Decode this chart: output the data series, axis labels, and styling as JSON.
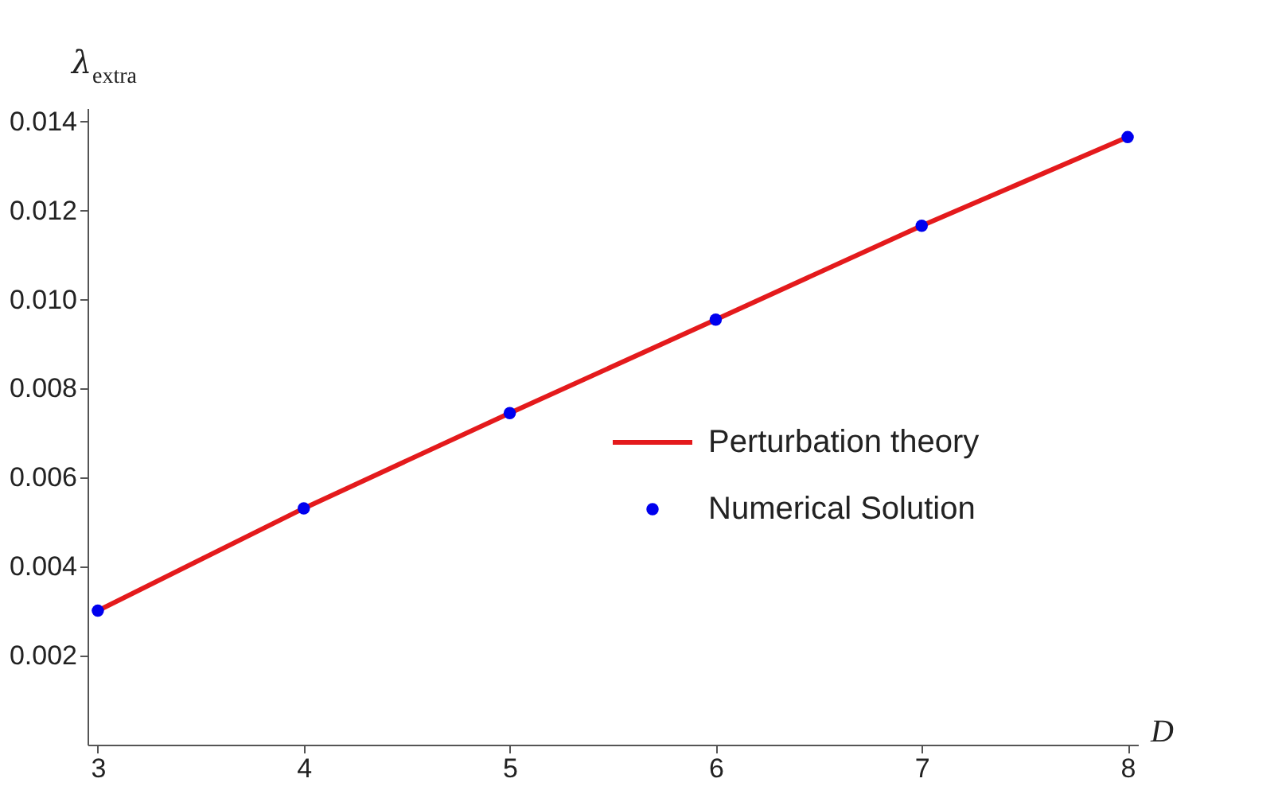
{
  "chart_data": {
    "type": "line",
    "ylabel": "λ$_{extra}$",
    "xlabel": "D",
    "x": [
      3,
      4,
      5,
      6,
      7,
      8
    ],
    "series": [
      {
        "name": "Perturbation theory",
        "color": "#e41a1c",
        "line_style": "solid",
        "marker": "none",
        "values": [
          0.00301,
          0.00531,
          0.00745,
          0.00955,
          0.01166,
          0.01365
        ]
      },
      {
        "name": "Numerical Solution",
        "type": "scatter",
        "color": "#0000ee",
        "marker": "circle",
        "values": [
          0.00301,
          0.00531,
          0.00745,
          0.00955,
          0.01166,
          0.01365
        ]
      }
    ],
    "xlim": [
      2.95,
      8.05
    ],
    "ylim": [
      0,
      0.0143
    ],
    "xticks": [
      3,
      4,
      5,
      6,
      7,
      8
    ],
    "yticks": [
      {
        "value": 0.002,
        "label": "0.002"
      },
      {
        "value": 0.004,
        "label": "0.004"
      },
      {
        "value": 0.006,
        "label": "0.006"
      },
      {
        "value": 0.008,
        "label": "0.008"
      },
      {
        "value": 0.01,
        "label": "0.010"
      },
      {
        "value": 0.012,
        "label": "0.012"
      },
      {
        "value": 0.014,
        "label": "0.014"
      }
    ],
    "grid": false,
    "legend": "bottom right"
  }
}
